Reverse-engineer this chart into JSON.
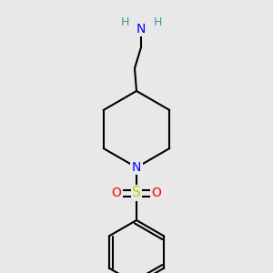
{
  "background_color": "#e8e8e8",
  "atom_colors": {
    "C": "#000000",
    "H": "#3a9a9a",
    "N": "#0000ff",
    "O": "#ff0000",
    "S": "#cccc00"
  },
  "bond_color": "#000000",
  "bond_width": 1.5,
  "figsize": [
    3.0,
    3.0
  ],
  "dpi": 100
}
